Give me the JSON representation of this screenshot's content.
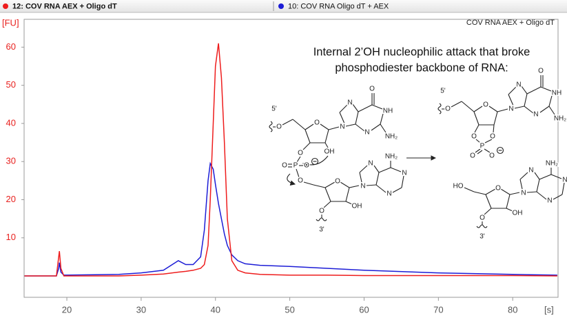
{
  "chart_data": {
    "type": "line",
    "title": "COV RNA AEX + Oligo dT",
    "y_label": "[FU]",
    "x_label": "[s]",
    "x": [
      14.3,
      18.6,
      18.9,
      19.0,
      19.2,
      19.6,
      23,
      27,
      30,
      33,
      35,
      36,
      37,
      38,
      38.5,
      39,
      39.3,
      39.7,
      40.0,
      40.4,
      40.8,
      41.2,
      41.6,
      42.2,
      43,
      44,
      46,
      50,
      55,
      60,
      70,
      80,
      86
    ],
    "series": [
      {
        "name": "12: COV RNA AEX + Oligo dT",
        "color": "#ee1c1c",
        "values": [
          0,
          0,
          5,
          6.5,
          2,
          0,
          0,
          0,
          0.2,
          0.5,
          1,
          1.2,
          1.5,
          2,
          3,
          8,
          20,
          40,
          55,
          61,
          52,
          35,
          15,
          4,
          1.5,
          0.8,
          0.4,
          0.2,
          0.2,
          0.1,
          0.1,
          0.1,
          0
        ]
      },
      {
        "name": "10: COV RNA Oligo dT + AEX",
        "color": "#1c1cd6",
        "values": [
          0,
          0,
          2,
          3.5,
          1,
          0.2,
          0.3,
          0.4,
          0.8,
          1.5,
          4,
          3,
          3,
          5,
          12,
          25,
          29.5,
          28,
          24,
          19,
          15,
          11,
          8,
          5.5,
          4,
          3.2,
          2.8,
          2.5,
          2,
          1.5,
          0.8,
          0.4,
          0.2
        ]
      }
    ],
    "xlim": [
      14.25,
      86.1
    ],
    "ylim": [
      -5.6,
      67.3
    ],
    "xticks": [
      20,
      30,
      40,
      50,
      60,
      70,
      80
    ],
    "yticks": [
      10,
      20,
      30,
      40,
      50,
      60
    ],
    "grid": false,
    "annotation": [
      "Internal 2’OH nucleophilic attack that broke",
      "phosphodiester backbone of RNA:"
    ],
    "structure_labels": [
      "5'",
      "O",
      "O",
      "N",
      "N",
      "O",
      "NH",
      "NH₂",
      "N",
      "O",
      "OH",
      "O",
      "P",
      "O",
      "O",
      "O",
      "N",
      "N",
      "NH₂",
      "N",
      "N",
      "O",
      "OH",
      "3'",
      "5'",
      "O",
      "O",
      "N",
      "N",
      "O",
      "NH",
      "NH₂",
      "N",
      "O",
      "O",
      "P",
      "O",
      "O",
      "HO",
      "O",
      "N",
      "N",
      "NH₂",
      "N",
      "N",
      "O",
      "OH",
      "3'"
    ]
  }
}
